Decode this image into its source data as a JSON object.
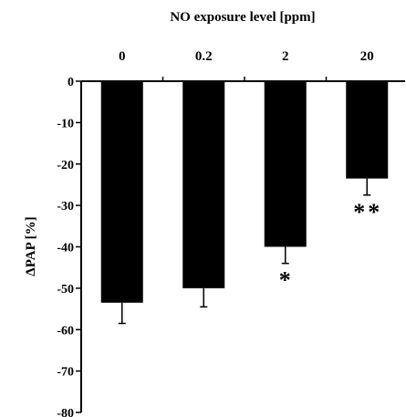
{
  "chart_data": {
    "type": "bar",
    "title": "NO exposure level [ppm]",
    "ylabel": "ΔPAP [%]",
    "xlabel": "",
    "categories": [
      "0",
      "0.2",
      "2",
      "20"
    ],
    "values": [
      -53.5,
      -50,
      -40,
      -23.5
    ],
    "errors": [
      5,
      4.5,
      4,
      4
    ],
    "significance": [
      "",
      "",
      "*",
      "**"
    ],
    "ylim": [
      -80,
      0
    ],
    "yticks": [
      0,
      -10,
      -20,
      -30,
      -40,
      -50,
      -60,
      -70,
      -80
    ],
    "x_axis_position": "top",
    "bar_color": "#000000",
    "grid": false
  }
}
